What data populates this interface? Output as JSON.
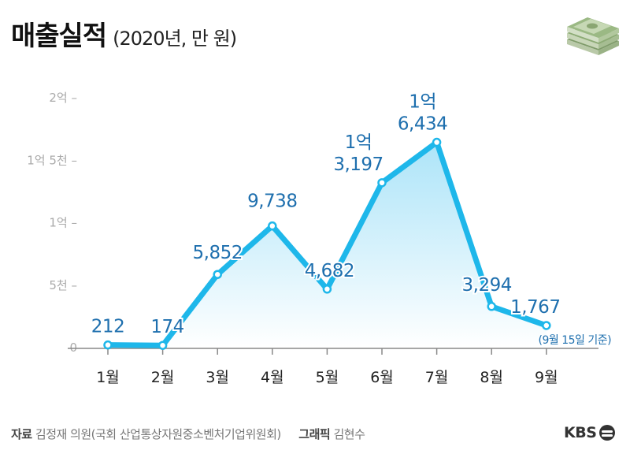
{
  "header": {
    "title": "매출실적",
    "subtitle": "(2020년, 만 원)"
  },
  "footer": {
    "source_label": "자료",
    "source_text": "김정재 의원(국회 산업통상자원중소벤처기업위원회)",
    "graphic_label": "그래픽",
    "graphic_text": "김현수",
    "logo_text": "KBS"
  },
  "icons": {
    "money": "money-stack-icon",
    "logo": "kbs-logo-icon"
  },
  "colors": {
    "line": "#1eb7ea",
    "area_top": "#a9e3f8",
    "area_bottom": "#ffffff",
    "label": "#1e6fae",
    "axis": "#888888",
    "tick_label": "#aaaaaa",
    "month_label": "#222222"
  },
  "chart_data": {
    "type": "area",
    "categories": [
      "1월",
      "2월",
      "3월",
      "4월",
      "5월",
      "6월",
      "7월",
      "8월",
      "9월"
    ],
    "values": [
      212,
      174,
      5852,
      9738,
      4682,
      13197,
      16434,
      3294,
      1767
    ],
    "data_labels": [
      [
        "212"
      ],
      [
        "174"
      ],
      [
        "5,852"
      ],
      [
        "9,738"
      ],
      [
        "4,682"
      ],
      [
        "1억",
        "3,197"
      ],
      [
        "1억",
        "6,434"
      ],
      [
        "3,294"
      ],
      [
        "1,767"
      ]
    ],
    "y_ticks": [
      {
        "value": 0,
        "label": "0"
      },
      {
        "value": 5000,
        "label": "5천 –"
      },
      {
        "value": 10000,
        "label": "1억 –"
      },
      {
        "value": 15000,
        "label": "1억 5천 –"
      },
      {
        "value": 20000,
        "label": "2억 –"
      }
    ],
    "ylim": [
      0,
      20000
    ],
    "annotation": "(9월 15일 기준)",
    "grid": false,
    "title": "매출실적",
    "xlabel": "",
    "ylabel": ""
  }
}
